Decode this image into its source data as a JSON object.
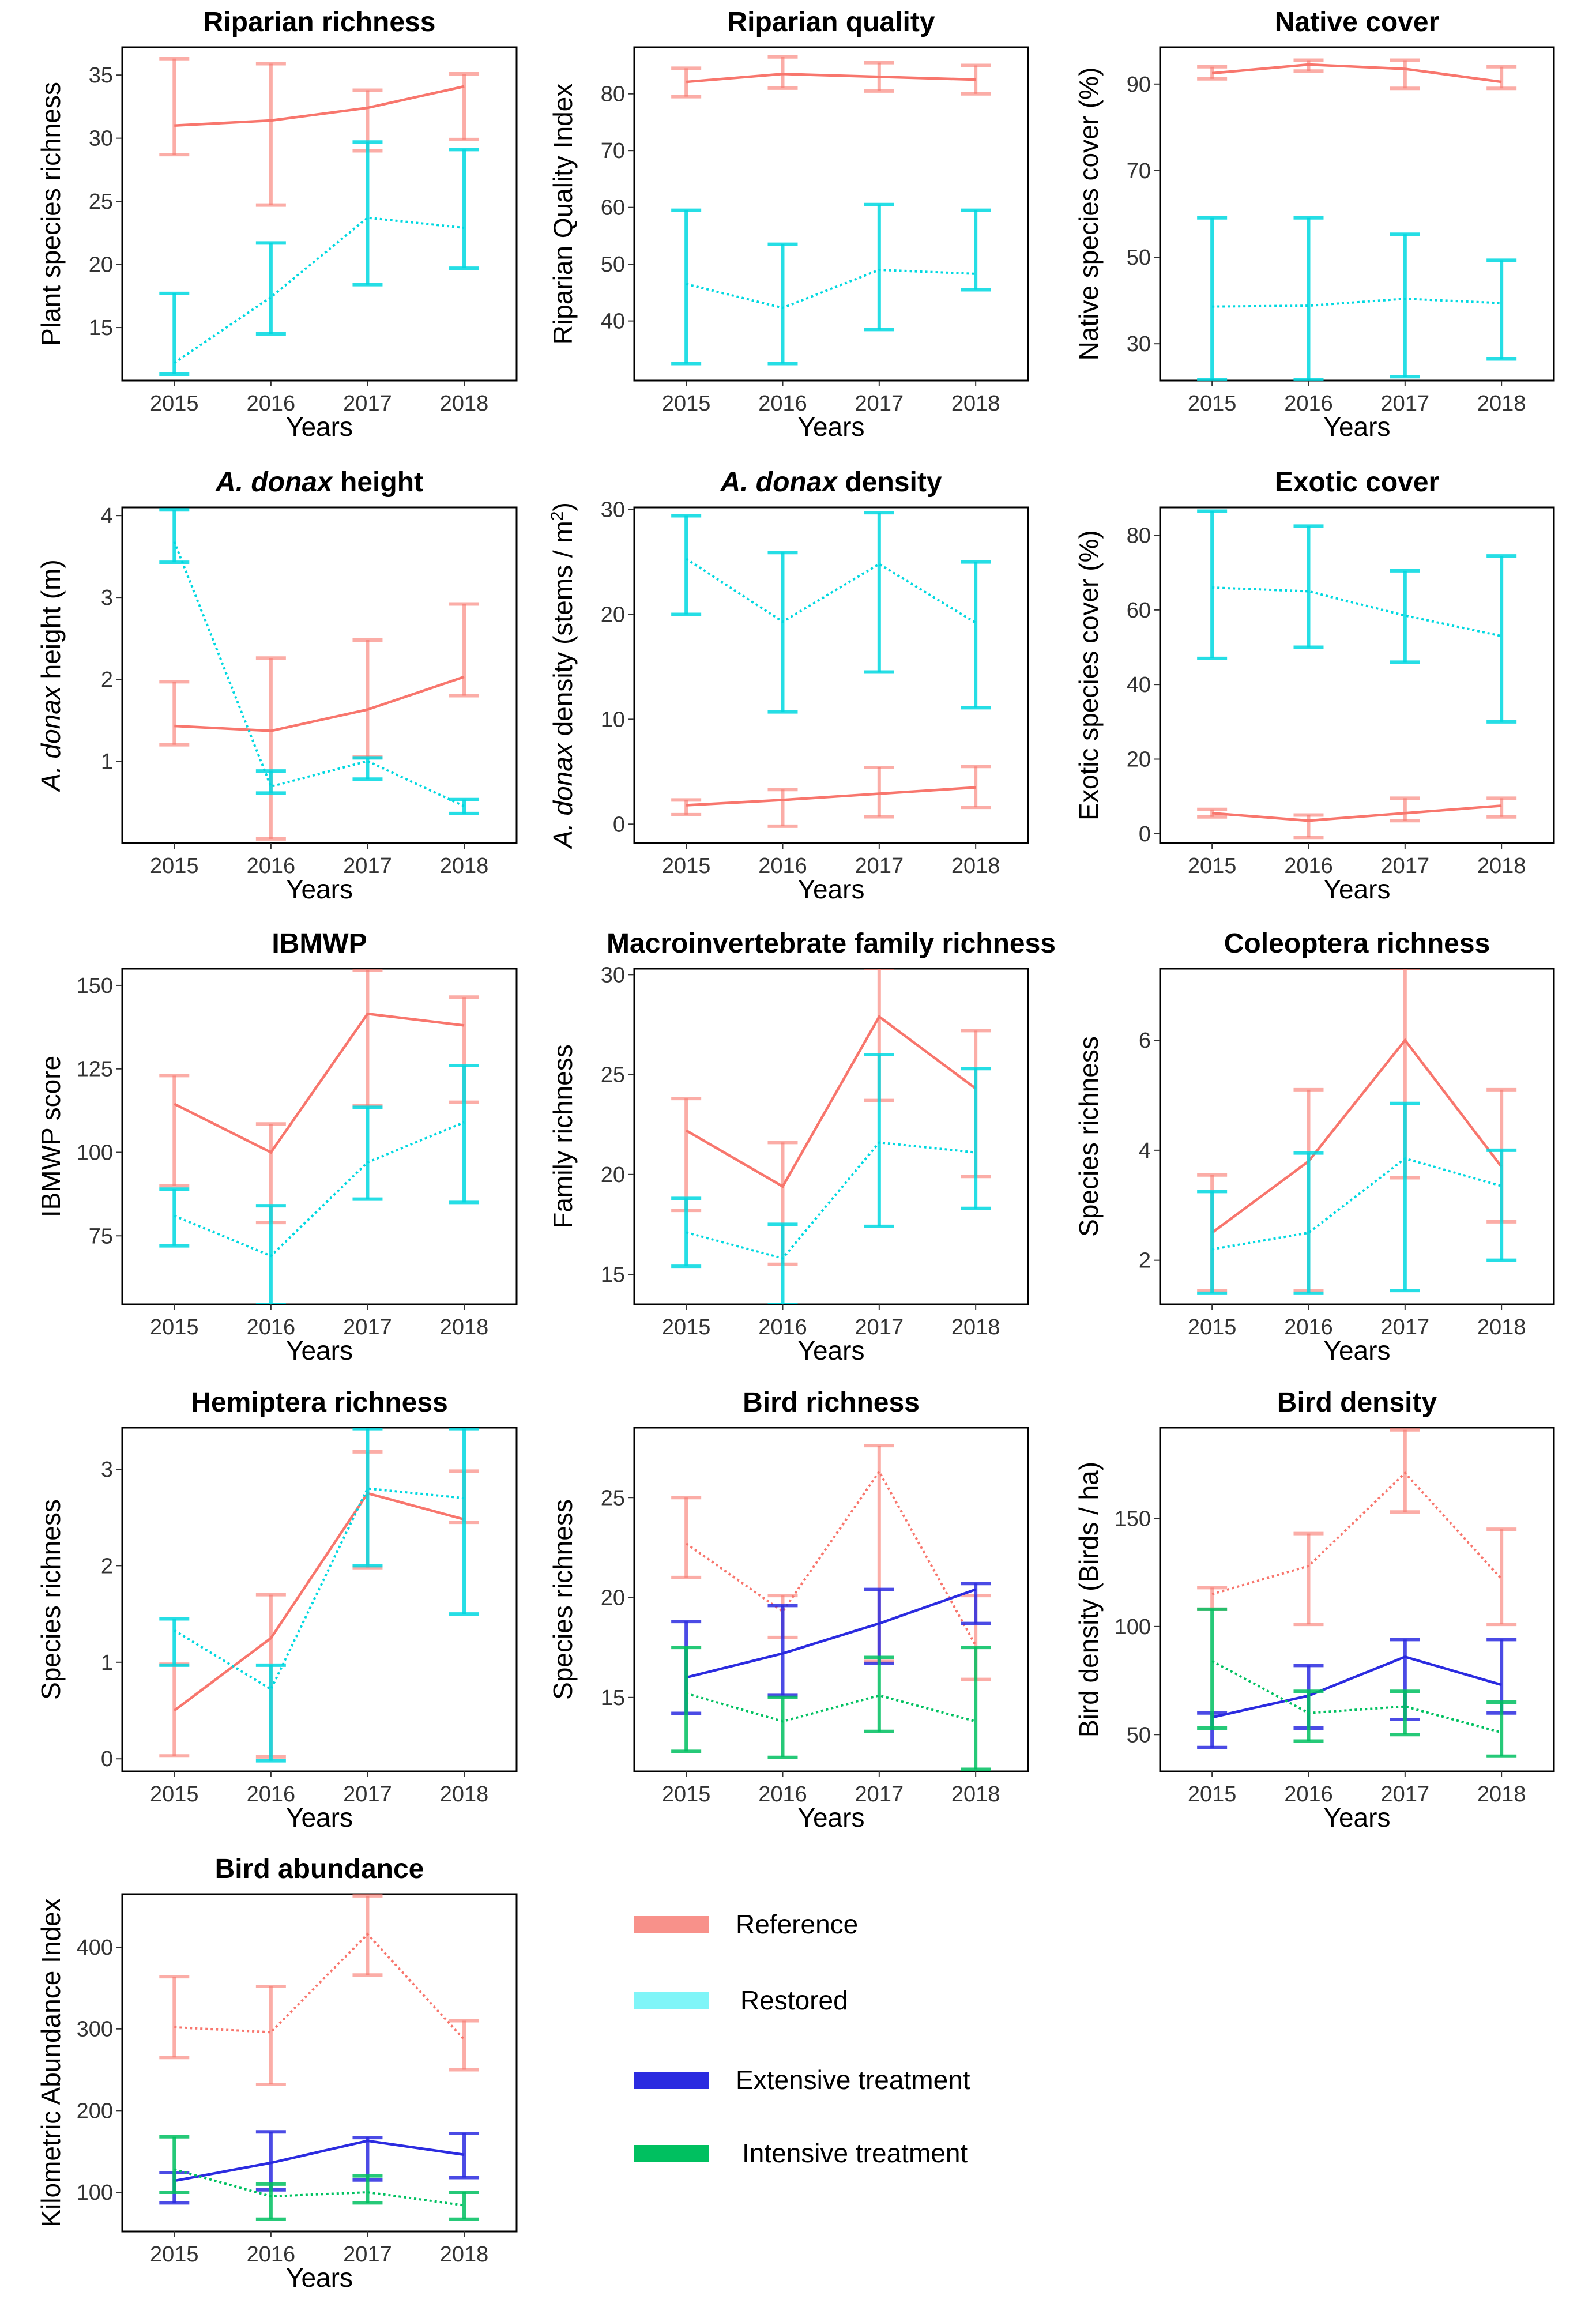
{
  "colors": {
    "Reference": "#F8766D",
    "Restored": "#00D8E0",
    "Extensive treatment": "#2B2BE0",
    "Intensive treatment": "#00C060"
  },
  "legend": {
    "items": [
      "Reference",
      "Restored",
      "Extensive treatment",
      "Intensive treatment"
    ],
    "swatch_colors": [
      "#F8918A",
      "#7FF5F8",
      "#2B2BE0",
      "#00C060"
    ]
  },
  "chart_data": [
    {
      "type": "line",
      "title": "Riparian richness",
      "xlabel": "Years",
      "ylabel": "Plant species richness",
      "categories": [
        "2015",
        "2016",
        "2017",
        "2018"
      ],
      "ylim": [
        10.8,
        37.2
      ],
      "yticks": [
        15,
        20,
        25,
        30,
        35
      ],
      "series": [
        {
          "name": "Reference",
          "style": "solid",
          "values": [
            31,
            31.4,
            32.4,
            34.1
          ],
          "lower": [
            28.7,
            24.7,
            29,
            29.9
          ],
          "upper": [
            36.3,
            35.9,
            33.8,
            35.1
          ]
        },
        {
          "name": "Restored",
          "style": "dotted",
          "values": [
            12.2,
            17.4,
            23.7,
            22.9
          ],
          "lower": [
            11.3,
            14.5,
            18.4,
            19.7
          ],
          "upper": [
            17.7,
            21.7,
            29.7,
            29.1
          ]
        }
      ]
    },
    {
      "type": "line",
      "title": "Riparian quality",
      "xlabel": "Years",
      "ylabel": "Riparian Quality Index",
      "categories": [
        "2015",
        "2016",
        "2017",
        "2018"
      ],
      "ylim": [
        29.5,
        88.2
      ],
      "yticks": [
        40,
        50,
        60,
        70,
        80
      ],
      "series": [
        {
          "name": "Reference",
          "style": "solid",
          "values": [
            82.1,
            83.5,
            83,
            82.5
          ],
          "lower": [
            79.5,
            81,
            80.5,
            80
          ],
          "upper": [
            84.5,
            86.5,
            85.5,
            85
          ]
        },
        {
          "name": "Restored",
          "style": "dotted",
          "values": [
            46.5,
            42.3,
            49,
            48.3
          ],
          "lower": [
            32.5,
            32.5,
            38.5,
            45.5
          ],
          "upper": [
            59.5,
            53.5,
            60.5,
            59.5
          ]
        }
      ]
    },
    {
      "type": "line",
      "title": "Native cover",
      "xlabel": "Years",
      "ylabel": "Native species cover (%)",
      "categories": [
        "2015",
        "2016",
        "2017",
        "2018"
      ],
      "ylim": [
        21.5,
        98.5
      ],
      "yticks": [
        30,
        50,
        70,
        90
      ],
      "series": [
        {
          "name": "Reference",
          "style": "solid",
          "values": [
            92.5,
            94.5,
            93.5,
            90.5
          ],
          "lower": [
            91.2,
            93,
            89,
            89
          ],
          "upper": [
            94,
            95.5,
            95.5,
            94
          ]
        },
        {
          "name": "Restored",
          "style": "dotted",
          "values": [
            38.6,
            38.8,
            40.4,
            39.4
          ],
          "lower": [
            21.7,
            21.7,
            22.4,
            26.5
          ],
          "upper": [
            59.1,
            59.1,
            55.3,
            49.3
          ]
        }
      ]
    },
    {
      "type": "line",
      "title": "A. donax height",
      "title_italic": "A. donax",
      "title_rest": " height",
      "xlabel": "Years",
      "ylabel": "A. donax height (m)",
      "ylabel_italic": "A. donax",
      "ylabel_rest": " height (m)",
      "categories": [
        "2015",
        "2016",
        "2017",
        "2018"
      ],
      "ylim": [
        0,
        4.1
      ],
      "yticks": [
        1,
        2,
        3,
        4
      ],
      "series": [
        {
          "name": "Reference",
          "style": "solid",
          "values": [
            1.43,
            1.37,
            1.63,
            2.03
          ],
          "lower": [
            1.2,
            0.05,
            1.05,
            1.8
          ],
          "upper": [
            1.97,
            2.26,
            2.48,
            2.92
          ]
        },
        {
          "name": "Restored",
          "style": "dotted",
          "values": [
            3.68,
            0.69,
            1.0,
            0.45
          ],
          "lower": [
            3.43,
            0.61,
            0.78,
            0.36
          ],
          "upper": [
            4.07,
            0.88,
            1.04,
            0.53
          ]
        }
      ]
    },
    {
      "type": "line",
      "title": "A. donax density",
      "title_italic": "A. donax",
      "title_rest": " density",
      "xlabel": "Years",
      "ylabel": "A. donax density (stems / m²)",
      "ylabel_italic": "A. donax",
      "ylabel_rest": " density (stems / m",
      "ylabel_sup": "2",
      "ylabel_end": ")",
      "categories": [
        "2015",
        "2016",
        "2017",
        "2018"
      ],
      "ylim": [
        -1.8,
        30.2
      ],
      "yticks": [
        0,
        10,
        20,
        30
      ],
      "series": [
        {
          "name": "Reference",
          "style": "solid",
          "values": [
            1.8,
            2.3,
            2.9,
            3.5
          ],
          "lower": [
            0.9,
            -0.2,
            0.7,
            1.6
          ],
          "upper": [
            2.3,
            3.3,
            5.4,
            5.5
          ]
        },
        {
          "name": "Restored",
          "style": "dotted",
          "values": [
            25.3,
            19.3,
            24.8,
            19.2
          ],
          "lower": [
            20,
            10.7,
            14.5,
            11.1
          ],
          "upper": [
            29.4,
            25.9,
            29.7,
            25
          ]
        }
      ]
    },
    {
      "type": "line",
      "title": "Exotic cover",
      "xlabel": "Years",
      "ylabel": "Exotic species cover (%)",
      "categories": [
        "2015",
        "2016",
        "2017",
        "2018"
      ],
      "ylim": [
        -2.5,
        87.5
      ],
      "yticks": [
        0,
        20,
        40,
        60,
        80
      ],
      "series": [
        {
          "name": "Reference",
          "style": "solid",
          "values": [
            5.5,
            3.5,
            5.5,
            7.5
          ],
          "lower": [
            4.5,
            -1,
            3.5,
            4.5
          ],
          "upper": [
            6.5,
            5,
            9.5,
            9.5
          ]
        },
        {
          "name": "Restored",
          "style": "dotted",
          "values": [
            66,
            65,
            58.5,
            53
          ],
          "lower": [
            47,
            50,
            46,
            30
          ],
          "upper": [
            86.5,
            82.5,
            70.5,
            74.5
          ]
        }
      ]
    },
    {
      "type": "line",
      "title": "IBMWP",
      "xlabel": "Years",
      "ylabel": "IBMWP score",
      "categories": [
        "2015",
        "2016",
        "2017",
        "2018"
      ],
      "ylim": [
        54.5,
        155
      ],
      "yticks": [
        75,
        100,
        125,
        150
      ],
      "series": [
        {
          "name": "Reference",
          "style": "solid",
          "values": [
            114.5,
            100,
            141.5,
            138
          ],
          "lower": [
            90,
            79,
            114,
            115
          ],
          "upper": [
            123,
            108.5,
            154.5,
            146.5
          ]
        },
        {
          "name": "Restored",
          "style": "dotted",
          "values": [
            81,
            69,
            97,
            109
          ],
          "lower": [
            72,
            54.5,
            86,
            85
          ],
          "upper": [
            89,
            84,
            113.5,
            126
          ]
        }
      ]
    },
    {
      "type": "line",
      "title": "Macroinvertebrate family richness",
      "xlabel": "Years",
      "ylabel": "Family richness",
      "categories": [
        "2015",
        "2016",
        "2017",
        "2018"
      ],
      "ylim": [
        13.5,
        30.3
      ],
      "yticks": [
        15,
        20,
        25,
        30
      ],
      "series": [
        {
          "name": "Reference",
          "style": "solid",
          "values": [
            22.2,
            19.4,
            27.9,
            24.3
          ],
          "lower": [
            18.2,
            15.5,
            23.7,
            19.9
          ],
          "upper": [
            23.8,
            21.6,
            30.3,
            27.2
          ]
        },
        {
          "name": "Restored",
          "style": "dotted",
          "values": [
            17.1,
            15.8,
            21.6,
            21.1
          ],
          "lower": [
            15.4,
            13.5,
            17.4,
            18.3
          ],
          "upper": [
            18.8,
            17.5,
            26,
            25.3
          ]
        }
      ]
    },
    {
      "type": "line",
      "title": "Coleoptera richness",
      "xlabel": "Years",
      "ylabel": "Species richness",
      "categories": [
        "2015",
        "2016",
        "2017",
        "2018"
      ],
      "ylim": [
        1.2,
        7.3
      ],
      "yticks": [
        2,
        4,
        6
      ],
      "series": [
        {
          "name": "Reference",
          "style": "solid",
          "values": [
            2.5,
            3.8,
            6,
            3.7
          ],
          "lower": [
            1.45,
            1.45,
            3.5,
            2.7
          ],
          "upper": [
            3.55,
            5.1,
            7.3,
            5.1
          ]
        },
        {
          "name": "Restored",
          "style": "dotted",
          "values": [
            2.2,
            2.5,
            3.85,
            3.35
          ],
          "lower": [
            1.4,
            1.4,
            1.45,
            2
          ],
          "upper": [
            3.25,
            3.95,
            4.85,
            4
          ]
        }
      ]
    },
    {
      "type": "line",
      "title": "Hemiptera richness",
      "xlabel": "Years",
      "ylabel": "Species richness",
      "categories": [
        "2015",
        "2016",
        "2017",
        "2018"
      ],
      "ylim": [
        -0.13,
        3.43
      ],
      "yticks": [
        0,
        1,
        2,
        3
      ],
      "series": [
        {
          "name": "Reference",
          "style": "solid",
          "values": [
            0.5,
            1.25,
            2.75,
            2.48
          ],
          "lower": [
            0.03,
            0.02,
            1.98,
            2.45
          ],
          "upper": [
            0.98,
            1.7,
            3.18,
            2.98
          ]
        },
        {
          "name": "Restored",
          "style": "dotted",
          "values": [
            1.33,
            0.72,
            2.8,
            2.7
          ],
          "lower": [
            0.97,
            -0.02,
            2,
            1.5
          ],
          "upper": [
            1.45,
            0.97,
            3.42,
            3.42
          ]
        }
      ]
    },
    {
      "type": "line",
      "title": "Bird richness",
      "xlabel": "Years",
      "ylabel": "Species richness",
      "categories": [
        "2015",
        "2016",
        "2017",
        "2018"
      ],
      "ylim": [
        11.3,
        28.5
      ],
      "yticks": [
        15,
        20,
        25
      ],
      "series": [
        {
          "name": "Reference",
          "style": "dotted",
          "values": [
            22.7,
            19.3,
            26.3,
            17.6
          ],
          "lower": [
            21,
            18,
            16.8,
            15.9
          ],
          "upper": [
            25,
            20.1,
            27.6,
            20.1
          ]
        },
        {
          "name": "Extensive treatment",
          "style": "solid",
          "values": [
            16,
            17.2,
            18.7,
            20.4
          ],
          "lower": [
            14.2,
            15.1,
            16.7,
            18.7
          ],
          "upper": [
            18.8,
            19.6,
            20.4,
            20.7
          ]
        },
        {
          "name": "Intensive treatment",
          "style": "dotted",
          "values": [
            15.2,
            13.8,
            15.1,
            13.8
          ],
          "lower": [
            12.3,
            12,
            13.3,
            11.4
          ],
          "upper": [
            17.5,
            15,
            17,
            17.5
          ]
        }
      ]
    },
    {
      "type": "line",
      "title": "Bird density",
      "xlabel": "Years",
      "ylabel": "Bird density (Birds / ha)",
      "categories": [
        "2015",
        "2016",
        "2017",
        "2018"
      ],
      "ylim": [
        33,
        192
      ],
      "yticks": [
        50,
        100,
        150
      ],
      "series": [
        {
          "name": "Reference",
          "style": "dotted",
          "values": [
            115,
            128,
            171,
            122
          ],
          "lower": [
            108,
            101,
            153,
            101
          ],
          "upper": [
            118,
            143,
            191,
            145
          ]
        },
        {
          "name": "Extensive treatment",
          "style": "solid",
          "values": [
            58,
            68,
            86,
            73
          ],
          "lower": [
            44,
            53,
            57,
            60
          ],
          "upper": [
            60,
            82,
            94,
            94
          ]
        },
        {
          "name": "Intensive treatment",
          "style": "dotted",
          "values": [
            84,
            60,
            63,
            51
          ],
          "lower": [
            53,
            47,
            50,
            40
          ],
          "upper": [
            108,
            70,
            70,
            65
          ]
        }
      ]
    },
    {
      "type": "line",
      "title": "Bird abundance",
      "xlabel": "Years",
      "ylabel": "Kilometric Abundance Index",
      "categories": [
        "2015",
        "2016",
        "2017",
        "2018"
      ],
      "ylim": [
        52,
        465
      ],
      "yticks": [
        100,
        200,
        300,
        400
      ],
      "series": [
        {
          "name": "Reference",
          "style": "dotted",
          "values": [
            302,
            296,
            416,
            287
          ],
          "lower": [
            265,
            232,
            366,
            250
          ],
          "upper": [
            364,
            352,
            463,
            310
          ]
        },
        {
          "name": "Extensive treatment",
          "style": "solid",
          "values": [
            114,
            136,
            163,
            146
          ],
          "lower": [
            87,
            103,
            115,
            118
          ],
          "upper": [
            124,
            174,
            167,
            172
          ]
        },
        {
          "name": "Intensive treatment",
          "style": "dotted",
          "values": [
            128,
            95,
            100,
            84
          ],
          "lower": [
            100,
            67,
            87,
            67
          ],
          "upper": [
            168,
            110,
            120,
            100
          ]
        }
      ]
    }
  ]
}
